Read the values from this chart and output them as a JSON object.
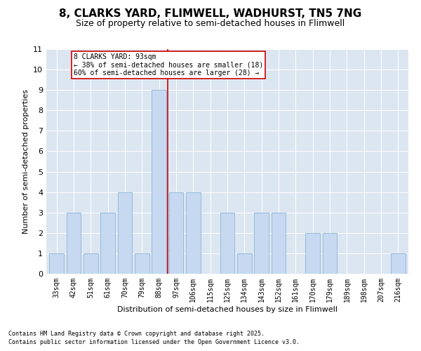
{
  "title1": "8, CLARKS YARD, FLIMWELL, WADHURST, TN5 7NG",
  "title2": "Size of property relative to semi-detached houses in Flimwell",
  "xlabel": "Distribution of semi-detached houses by size in Flimwell",
  "ylabel": "Number of semi-detached properties",
  "bins": [
    "33sqm",
    "42sqm",
    "51sqm",
    "61sqm",
    "70sqm",
    "79sqm",
    "88sqm",
    "97sqm",
    "106sqm",
    "115sqm",
    "125sqm",
    "134sqm",
    "143sqm",
    "152sqm",
    "161sqm",
    "170sqm",
    "179sqm",
    "189sqm",
    "198sqm",
    "207sqm",
    "216sqm"
  ],
  "values": [
    1,
    3,
    1,
    3,
    4,
    1,
    9,
    4,
    4,
    0,
    3,
    1,
    3,
    3,
    0,
    2,
    2,
    0,
    0,
    0,
    1
  ],
  "highlight_index": 6,
  "highlight_value": 9,
  "bar_color": "#c6d9f0",
  "bar_edge_color": "#8ab4d8",
  "highlight_line_color": "#cc0000",
  "annotation_text": "8 CLARKS YARD: 93sqm\n← 38% of semi-detached houses are smaller (18)\n60% of semi-detached houses are larger (28) →",
  "annotation_box_color": "#cc0000",
  "ylim": [
    0,
    11
  ],
  "yticks": [
    0,
    1,
    2,
    3,
    4,
    5,
    6,
    7,
    8,
    9,
    10,
    11
  ],
  "footnote1": "Contains HM Land Registry data © Crown copyright and database right 2025.",
  "footnote2": "Contains public sector information licensed under the Open Government Licence v3.0.",
  "bg_color": "#dce6f1",
  "title1_fontsize": 11,
  "title2_fontsize": 9,
  "ann_fontsize": 7,
  "ylabel_fontsize": 8,
  "xlabel_fontsize": 8,
  "xtick_fontsize": 7,
  "ytick_fontsize": 8
}
